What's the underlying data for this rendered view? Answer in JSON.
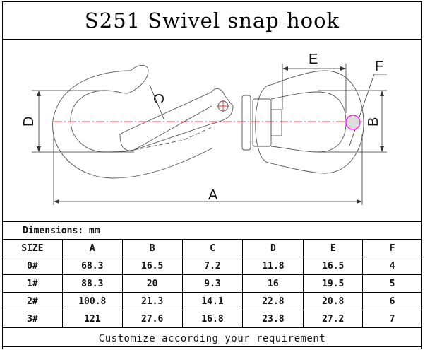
{
  "title": "S251 Swivel snap hook",
  "drawing": {
    "labels": {
      "A": "A",
      "B": "B",
      "C": "C",
      "D": "D",
      "E": "E",
      "F": "F"
    },
    "colors": {
      "line": "#555555",
      "centerline": "#ff0000",
      "section": "#ff00ff"
    }
  },
  "table": {
    "units_label": "Dimensions: mm",
    "headers": [
      "SIZE",
      "A",
      "B",
      "C",
      "D",
      "E",
      "F"
    ],
    "rows": [
      [
        "0#",
        "68.3",
        "16.5",
        "7.2",
        "11.8",
        "16.5",
        "4"
      ],
      [
        "1#",
        "88.3",
        "20",
        "9.3",
        "16",
        "19.5",
        "5"
      ],
      [
        "2#",
        "100.8",
        "21.3",
        "14.1",
        "22.8",
        "20.8",
        "6"
      ],
      [
        "3#",
        "121",
        "27.6",
        "16.8",
        "23.8",
        "27.2",
        "7"
      ]
    ],
    "footer": "Customize according your requirement"
  }
}
